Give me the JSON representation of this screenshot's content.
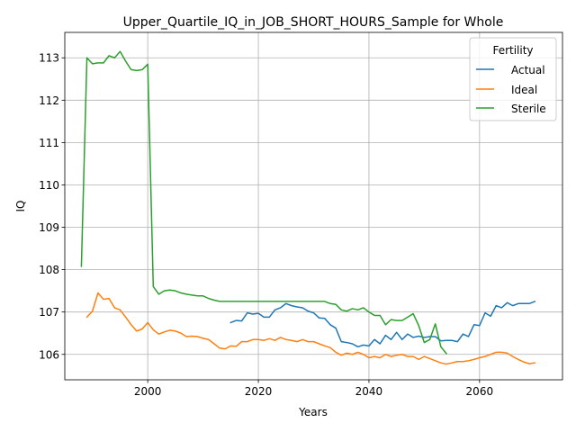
{
  "chart_data": {
    "type": "line",
    "title": "Upper_Quartile_IQ_in_JOB_SHORT_HOURS_Sample for Whole",
    "xlabel": "Years",
    "ylabel": "IQ",
    "xlim": [
      1985,
      2075
    ],
    "ylim": [
      105.4,
      113.6
    ],
    "xticks": [
      2000,
      2020,
      2040,
      2060
    ],
    "yticks": [
      106,
      107,
      108,
      109,
      110,
      111,
      112,
      113
    ],
    "grid": true,
    "legend": {
      "title": "Fertility",
      "position": "top-right"
    },
    "series": [
      {
        "name": "Actual",
        "color": "#1f77b4",
        "x": [
          2015,
          2016,
          2017,
          2018,
          2019,
          2020,
          2021,
          2022,
          2023,
          2024,
          2025,
          2026,
          2027,
          2028,
          2029,
          2030,
          2031,
          2032,
          2033,
          2034,
          2035,
          2036,
          2037,
          2038,
          2039,
          2040,
          2041,
          2042,
          2043,
          2044,
          2045,
          2046,
          2047,
          2048,
          2049,
          2050,
          2051,
          2052,
          2053,
          2054,
          2055,
          2056,
          2057,
          2058,
          2059,
          2060,
          2061,
          2062,
          2063,
          2064,
          2065,
          2066,
          2067,
          2068,
          2069,
          2070
        ],
        "y": [
          106.75,
          106.8,
          106.79,
          106.98,
          106.95,
          106.97,
          106.88,
          106.88,
          107.05,
          107.1,
          107.2,
          107.15,
          107.12,
          107.1,
          107.02,
          106.98,
          106.86,
          106.85,
          106.7,
          106.62,
          106.3,
          106.28,
          106.25,
          106.18,
          106.22,
          106.2,
          106.35,
          106.25,
          106.45,
          106.35,
          106.52,
          106.35,
          106.48,
          106.4,
          106.43,
          106.4,
          106.42,
          106.42,
          106.32,
          106.33,
          106.33,
          106.3,
          106.48,
          106.42,
          106.7,
          106.68,
          106.98,
          106.9,
          107.15,
          107.1,
          107.22,
          107.15,
          107.2,
          107.2,
          107.2,
          107.25
        ]
      },
      {
        "name": "Ideal",
        "color": "#ff7f0e",
        "x": [
          1989,
          1990,
          1991,
          1992,
          1993,
          1994,
          1995,
          1996,
          1997,
          1998,
          1999,
          2000,
          2001,
          2002,
          2003,
          2004,
          2005,
          2006,
          2007,
          2008,
          2009,
          2010,
          2011,
          2012,
          2013,
          2014,
          2015,
          2016,
          2017,
          2018,
          2019,
          2020,
          2021,
          2022,
          2023,
          2024,
          2025,
          2026,
          2027,
          2028,
          2029,
          2030,
          2031,
          2032,
          2033,
          2034,
          2035,
          2036,
          2037,
          2038,
          2039,
          2040,
          2041,
          2042,
          2043,
          2044,
          2045,
          2046,
          2047,
          2048,
          2049,
          2050,
          2051,
          2052,
          2053,
          2054,
          2055,
          2056,
          2057,
          2058,
          2059,
          2060,
          2061,
          2062,
          2063,
          2064,
          2065,
          2066,
          2067,
          2068,
          2069,
          2070
        ],
        "y": [
          106.88,
          107.02,
          107.45,
          107.3,
          107.32,
          107.1,
          107.05,
          106.88,
          106.7,
          106.55,
          106.6,
          106.75,
          106.58,
          106.48,
          106.53,
          106.57,
          106.55,
          106.5,
          106.42,
          106.43,
          106.42,
          106.38,
          106.35,
          106.25,
          106.15,
          106.13,
          106.2,
          106.19,
          106.3,
          106.3,
          106.35,
          106.35,
          106.33,
          106.37,
          106.33,
          106.4,
          106.35,
          106.33,
          106.3,
          106.35,
          106.3,
          106.3,
          106.25,
          106.2,
          106.16,
          106.05,
          105.98,
          106.03,
          106.0,
          106.05,
          106.0,
          105.92,
          105.95,
          105.92,
          106.0,
          105.95,
          105.98,
          106.0,
          105.95,
          105.95,
          105.88,
          105.95,
          105.9,
          105.85,
          105.8,
          105.77,
          105.8,
          105.83,
          105.83,
          105.85,
          105.88,
          105.92,
          105.95,
          106.0,
          106.05,
          106.05,
          106.03,
          105.95,
          105.88,
          105.82,
          105.78,
          105.8
        ]
      },
      {
        "name": "Sterile",
        "color": "#2ca02c",
        "x": [
          1988,
          1989,
          1990,
          1991,
          1992,
          1993,
          1994,
          1995,
          1996,
          1997,
          1998,
          1999,
          2000,
          2001,
          2002,
          2003,
          2004,
          2005,
          2006,
          2007,
          2008,
          2009,
          2010,
          2011,
          2012,
          2013,
          2014,
          2015,
          2016,
          2017,
          2018,
          2019,
          2020,
          2021,
          2022,
          2023,
          2024,
          2025,
          2026,
          2027,
          2028,
          2029,
          2030,
          2031,
          2032,
          2033,
          2034,
          2035,
          2036,
          2037,
          2038,
          2039,
          2040,
          2041,
          2042,
          2043,
          2044,
          2045,
          2046,
          2047,
          2048,
          2049,
          2050,
          2051,
          2052,
          2053,
          2054
        ],
        "y": [
          108.08,
          113.0,
          112.86,
          112.88,
          112.88,
          113.05,
          113.0,
          113.15,
          112.92,
          112.72,
          112.7,
          112.72,
          112.85,
          107.6,
          107.42,
          107.5,
          107.52,
          107.5,
          107.45,
          107.42,
          107.4,
          107.38,
          107.38,
          107.32,
          107.28,
          107.25,
          107.25,
          107.25,
          107.25,
          107.25,
          107.25,
          107.25,
          107.25,
          107.25,
          107.25,
          107.25,
          107.25,
          107.25,
          107.25,
          107.25,
          107.25,
          107.25,
          107.25,
          107.25,
          107.25,
          107.2,
          107.18,
          107.05,
          107.02,
          107.08,
          107.05,
          107.1,
          107.0,
          106.92,
          106.92,
          106.7,
          106.82,
          106.8,
          106.8,
          106.88,
          106.96,
          106.68,
          106.28,
          106.35,
          106.72,
          106.18,
          106.02
        ]
      }
    ]
  }
}
